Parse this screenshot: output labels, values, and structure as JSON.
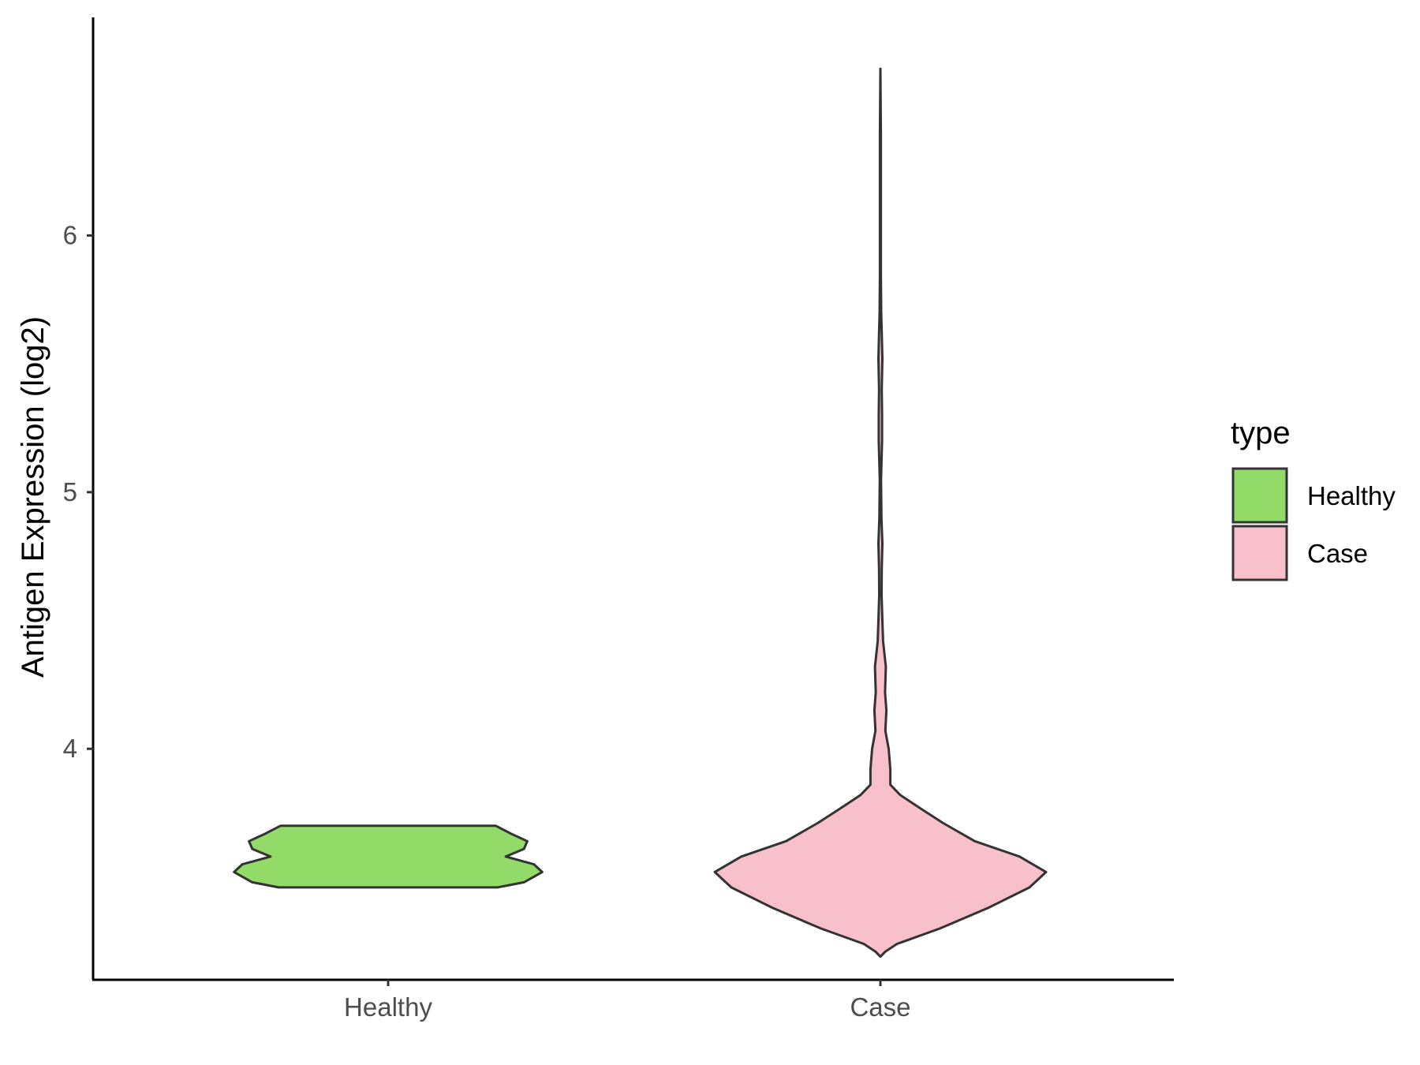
{
  "chart_data": {
    "type": "violin",
    "title": "",
    "xlabel": "",
    "ylabel": "Antigen Expression (log2)",
    "ylim": [
      3.1,
      6.85
    ],
    "yticks": [
      4,
      5,
      6
    ],
    "categories": [
      "Healthy",
      "Case"
    ],
    "series": [
      {
        "name": "Healthy",
        "color": "#92db69",
        "profile": [
          {
            "y": 3.46,
            "w": 0.66
          },
          {
            "y": 3.48,
            "w": 0.82
          },
          {
            "y": 3.52,
            "w": 0.93
          },
          {
            "y": 3.55,
            "w": 0.88
          },
          {
            "y": 3.58,
            "w": 0.71
          },
          {
            "y": 3.61,
            "w": 0.82
          },
          {
            "y": 3.64,
            "w": 0.84
          },
          {
            "y": 3.67,
            "w": 0.74
          },
          {
            "y": 3.7,
            "w": 0.65
          }
        ]
      },
      {
        "name": "Case",
        "color": "#f8c0cb",
        "profile": [
          {
            "y": 3.19,
            "w": 0.0
          },
          {
            "y": 3.21,
            "w": 0.03
          },
          {
            "y": 3.24,
            "w": 0.1
          },
          {
            "y": 3.3,
            "w": 0.36
          },
          {
            "y": 3.38,
            "w": 0.65
          },
          {
            "y": 3.46,
            "w": 0.9
          },
          {
            "y": 3.52,
            "w": 1.0
          },
          {
            "y": 3.58,
            "w": 0.84
          },
          {
            "y": 3.64,
            "w": 0.57
          },
          {
            "y": 3.71,
            "w": 0.38
          },
          {
            "y": 3.76,
            "w": 0.26
          },
          {
            "y": 3.82,
            "w": 0.12
          },
          {
            "y": 3.86,
            "w": 0.06
          },
          {
            "y": 3.92,
            "w": 0.06
          },
          {
            "y": 4.0,
            "w": 0.05
          },
          {
            "y": 4.07,
            "w": 0.03
          },
          {
            "y": 4.15,
            "w": 0.036
          },
          {
            "y": 4.22,
            "w": 0.028
          },
          {
            "y": 4.32,
            "w": 0.033
          },
          {
            "y": 4.42,
            "w": 0.016
          },
          {
            "y": 4.5,
            "w": 0.012
          },
          {
            "y": 4.6,
            "w": 0.007
          },
          {
            "y": 4.7,
            "w": 0.008
          },
          {
            "y": 4.8,
            "w": 0.012
          },
          {
            "y": 4.9,
            "w": 0.006
          },
          {
            "y": 5.05,
            "w": 0.004
          },
          {
            "y": 5.2,
            "w": 0.01
          },
          {
            "y": 5.3,
            "w": 0.01
          },
          {
            "y": 5.4,
            "w": 0.008
          },
          {
            "y": 5.52,
            "w": 0.012
          },
          {
            "y": 5.62,
            "w": 0.008
          },
          {
            "y": 5.7,
            "w": 0.005
          },
          {
            "y": 5.85,
            "w": 0.003
          },
          {
            "y": 6.1,
            "w": 0.003
          },
          {
            "y": 6.4,
            "w": 0.003
          },
          {
            "y": 6.65,
            "w": 0.0
          }
        ]
      }
    ],
    "legend": {
      "title": "type",
      "position": "right",
      "items": [
        "Healthy",
        "Case"
      ]
    },
    "grid": false
  }
}
